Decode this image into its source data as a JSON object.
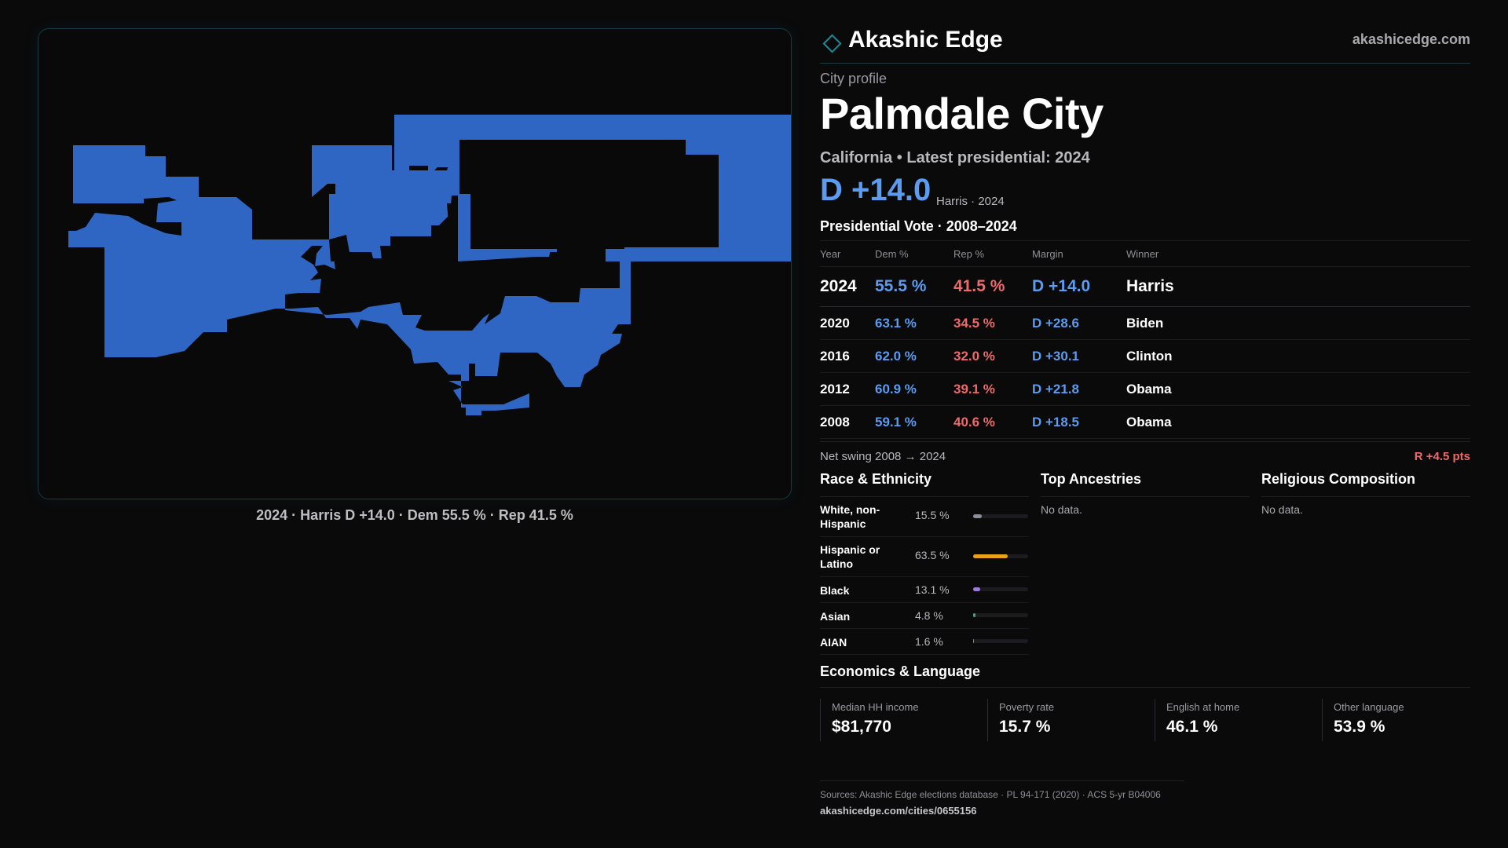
{
  "colors": {
    "dem": "#5b9bf0",
    "rep": "#ee6a6a",
    "map_fill": "#3066c3",
    "accent": "#1f8a93"
  },
  "map": {
    "caption": "2024 · Harris D +14.0 · Dem 55.5 % · Rep 41.5 %"
  },
  "brand": {
    "name": "Akashic Edge",
    "site": "akashicedge.com",
    "logo_icon": "diamond-icon"
  },
  "profile": {
    "kicker": "City profile",
    "title": "Palmdale City",
    "subtitle": "California • Latest presidential: 2024",
    "margin": "D +14.0",
    "margin_meta": "Harris · 2024"
  },
  "vote": {
    "title": "Presidential Vote · 2008–2024",
    "headers": {
      "year": "Year",
      "dem": "Dem %",
      "rep": "Rep %",
      "margin": "Margin",
      "winner": "Winner"
    },
    "rows": [
      {
        "year": "2024",
        "dem": "55.5 %",
        "rep": "41.5 %",
        "margin": "D +14.0",
        "winner": "Harris"
      },
      {
        "year": "2020",
        "dem": "63.1 %",
        "rep": "34.5 %",
        "margin": "D +28.6",
        "winner": "Biden"
      },
      {
        "year": "2016",
        "dem": "62.0 %",
        "rep": "32.0 %",
        "margin": "D +30.1",
        "winner": "Clinton"
      },
      {
        "year": "2012",
        "dem": "60.9 %",
        "rep": "39.1 %",
        "margin": "D +21.8",
        "winner": "Obama"
      },
      {
        "year": "2008",
        "dem": "59.1 %",
        "rep": "40.6 %",
        "margin": "D +18.5",
        "winner": "Obama"
      }
    ],
    "swing_label": "Net swing 2008 → 2024",
    "swing_value": "R +4.5 pts"
  },
  "race": {
    "title": "Race & Ethnicity",
    "rows": [
      {
        "label": "White, non-Hispanic",
        "pct": "15.5 %",
        "value": 15.5,
        "color": "#8a8f9c"
      },
      {
        "label": "Hispanic or Latino",
        "pct": "63.5 %",
        "value": 63.5,
        "color": "#e8a21a"
      },
      {
        "label": "Black",
        "pct": "13.1 %",
        "value": 13.1,
        "color": "#9b7be0"
      },
      {
        "label": "Asian",
        "pct": "4.8 %",
        "value": 4.8,
        "color": "#2fb36e"
      },
      {
        "label": "AIAN",
        "pct": "1.6 %",
        "value": 1.6,
        "color": "#d9683a"
      }
    ]
  },
  "ancestries": {
    "title": "Top Ancestries",
    "empty": "No data."
  },
  "religion": {
    "title": "Religious Composition",
    "empty": "No data."
  },
  "economics": {
    "title": "Economics & Language",
    "cells": [
      {
        "label": "Median HH income",
        "value": "$81,770"
      },
      {
        "label": "Poverty rate",
        "value": "15.7 %"
      },
      {
        "label": "English at home",
        "value": "46.1 %"
      },
      {
        "label": "Other language",
        "value": "53.9 %"
      }
    ]
  },
  "sources": {
    "line": "Sources: Akashic Edge elections database · PL 94-171 (2020) · ACS 5-yr B04006",
    "url": "akashicedge.com/cities/0655156"
  }
}
